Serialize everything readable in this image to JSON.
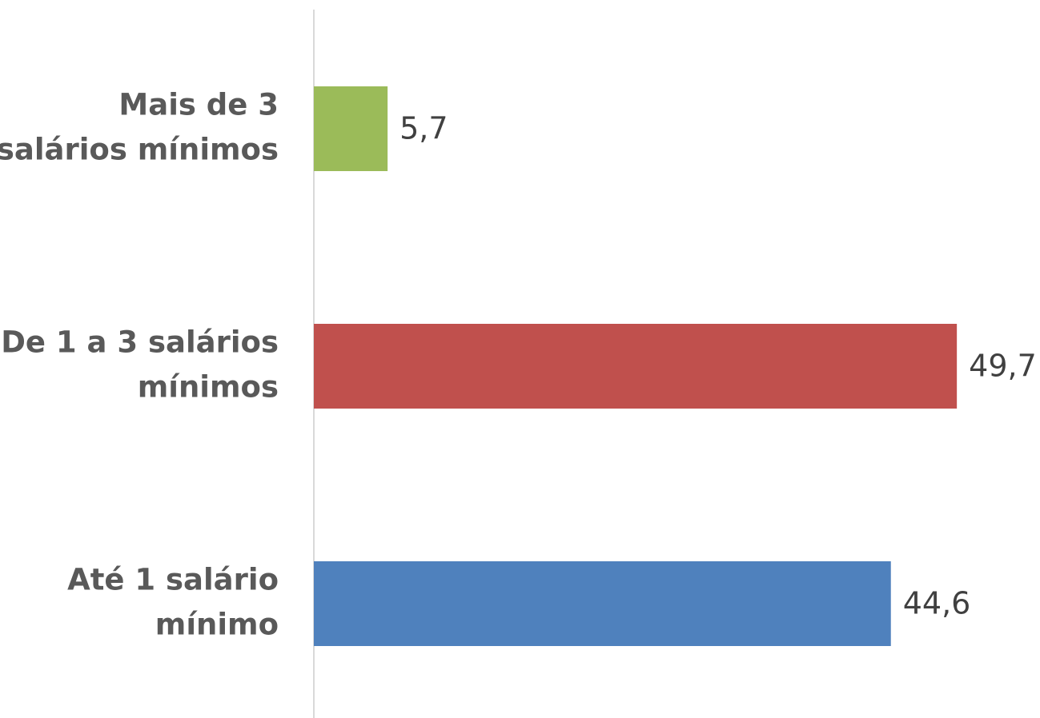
{
  "chart_data": {
    "type": "bar",
    "orientation": "horizontal",
    "categories": [
      [
        "Mais de 3",
        "salários mínimos"
      ],
      [
        "De 1 a 3 salários",
        "mínimos"
      ],
      [
        "Até 1 salário",
        "mínimo"
      ]
    ],
    "values": [
      5.7,
      49.7,
      44.6
    ],
    "value_labels": [
      "5,7",
      "49,7",
      "44,6"
    ],
    "colors": [
      "#9bbb59",
      "#c0504d",
      "#4f81bd"
    ],
    "xlim": [
      0,
      50
    ]
  }
}
